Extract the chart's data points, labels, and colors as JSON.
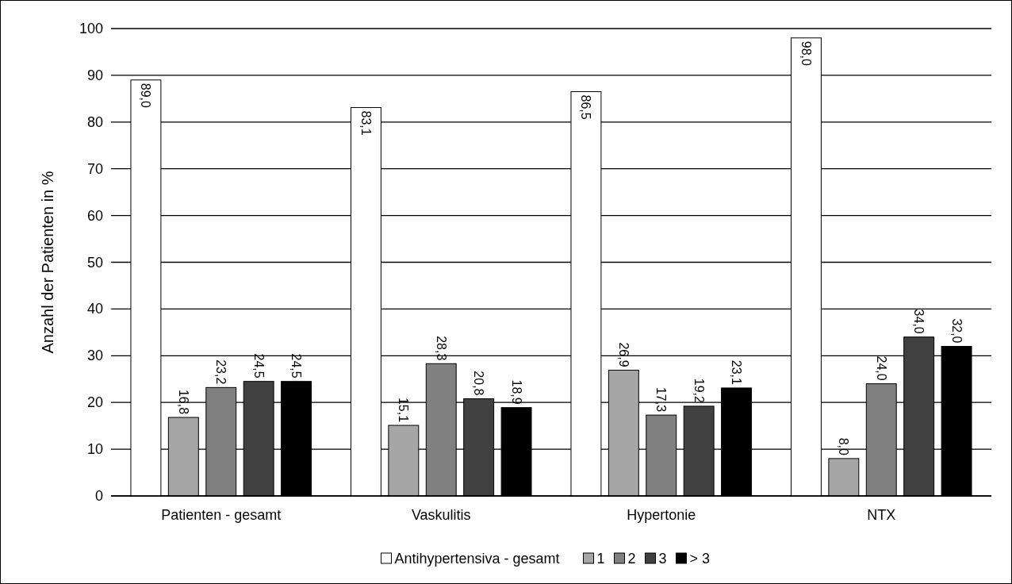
{
  "chart_data": {
    "type": "bar",
    "ylabel": "Anzahl der Patienten in %",
    "categories": [
      "Patienten - gesamt",
      "Vaskulitis",
      "Hypertonie",
      "NTX"
    ],
    "series": [
      {
        "name": "Antihypertensiva - gesamt",
        "color": "#ffffff",
        "values": [
          89.0,
          83.1,
          86.5,
          98.0
        ],
        "value_labels": [
          "89,0",
          "83,1",
          "86,5",
          "98,0"
        ]
      },
      {
        "name": "1",
        "color": "#a6a6a6",
        "values": [
          16.8,
          15.1,
          26.9,
          8.0
        ],
        "value_labels": [
          "16,8",
          "15,1",
          "26,9",
          "8,0"
        ]
      },
      {
        "name": "2",
        "color": "#808080",
        "values": [
          23.2,
          28.3,
          17.3,
          24.0
        ],
        "value_labels": [
          "23,2",
          "28,3",
          "17,3",
          "24,0"
        ]
      },
      {
        "name": "3",
        "color": "#404040",
        "values": [
          24.5,
          20.8,
          19.2,
          34.0
        ],
        "value_labels": [
          "24,5",
          "20,8",
          "19,2",
          "34,0"
        ]
      },
      {
        "name": "> 3",
        "color": "#000000",
        "values": [
          24.5,
          18.9,
          23.1,
          32.0
        ],
        "value_labels": [
          "24,5",
          "18,9",
          "23,1",
          "32,0"
        ]
      }
    ],
    "ylim": [
      0,
      100
    ],
    "yticks": [
      0,
      10,
      20,
      30,
      40,
      50,
      60,
      70,
      80,
      90,
      100
    ],
    "grid": "y",
    "legend": "bottom"
  }
}
